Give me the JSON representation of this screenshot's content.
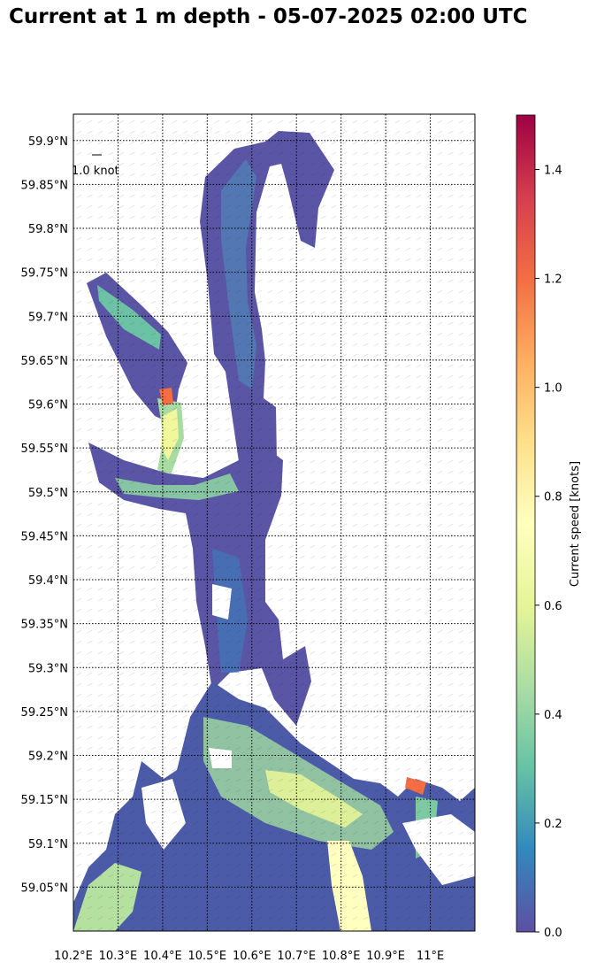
{
  "title": "Current at 1 m depth - 05-07-2025 02:00 UTC",
  "chart_data": {
    "type": "heatmap",
    "title": "Current at 1 m depth - 05-07-2025 02:00 UTC",
    "x_axis": {
      "ticks": [
        10.2,
        10.3,
        10.4,
        10.5,
        10.6,
        10.7,
        10.8,
        10.9,
        11.0
      ],
      "tick_labels": [
        "10.2°E",
        "10.3°E",
        "10.4°E",
        "10.5°E",
        "10.6°E",
        "10.7°E",
        "10.8°E",
        "10.9°E",
        "11°E"
      ],
      "range": [
        10.2,
        11.1
      ]
    },
    "y_axis": {
      "ticks": [
        59.05,
        59.1,
        59.15,
        59.2,
        59.25,
        59.3,
        59.35,
        59.4,
        59.45,
        59.5,
        59.55,
        59.6,
        59.65,
        59.7,
        59.75,
        59.8,
        59.85,
        59.9
      ],
      "tick_labels": [
        "59.05°N",
        "59.1°N",
        "59.15°N",
        "59.2°N",
        "59.25°N",
        "59.3°N",
        "59.35°N",
        "59.4°N",
        "59.45°N",
        "59.5°N",
        "59.55°N",
        "59.6°N",
        "59.65°N",
        "59.7°N",
        "59.75°N",
        "59.8°N",
        "59.85°N",
        "59.9°N"
      ],
      "range": [
        59.0,
        59.93
      ]
    },
    "grid": true,
    "grid_style": "dotted",
    "colorbar": {
      "label": "Current speed [knots]",
      "range": [
        0.0,
        1.5
      ],
      "ticks": [
        0.0,
        0.2,
        0.4,
        0.6,
        0.8,
        1.0,
        1.2,
        1.4
      ],
      "tick_labels": [
        "0.0",
        "0.2",
        "0.4",
        "0.6",
        "0.8",
        "1.0",
        "1.2",
        "1.4"
      ],
      "colormap": "Spectral_r",
      "colors": [
        "#5e4fa2",
        "#3288bd",
        "#66c2a5",
        "#abdda4",
        "#e6f598",
        "#ffffbf",
        "#fee08b",
        "#fdae61",
        "#f46d43",
        "#d53e4f",
        "#9e0142"
      ]
    },
    "reference_vector_label": "1.0 knot",
    "regions": [
      {
        "lon_range": [
          10.2,
          11.1
        ],
        "lat_range": [
          59.0,
          59.12
        ],
        "speed": 0.35
      },
      {
        "lon_range": [
          10.72,
          10.85
        ],
        "lat_range": [
          59.0,
          59.12
        ],
        "speed": 0.7
      },
      {
        "lon_range": [
          10.38,
          10.42
        ],
        "lat_range": [
          59.5,
          59.62
        ],
        "speed": 0.75
      },
      {
        "lon_range": [
          10.39,
          10.42
        ],
        "lat_range": [
          59.6,
          59.62
        ],
        "speed": 1.2
      },
      {
        "lon_range": [
          10.95,
          10.99
        ],
        "lat_range": [
          59.16,
          59.18
        ],
        "speed": 1.2
      }
    ]
  }
}
